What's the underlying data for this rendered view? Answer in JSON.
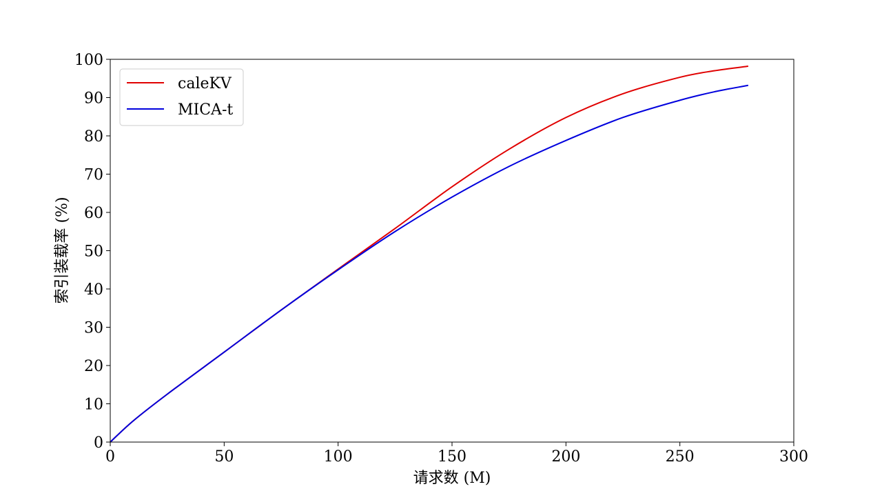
{
  "chart_data": {
    "type": "line",
    "title": "",
    "xlabel": "请求数 (M)",
    "ylabel": "索引装载率 (%)",
    "xlim": [
      0,
      300
    ],
    "ylim": [
      0,
      100
    ],
    "xticks": [
      0,
      50,
      100,
      150,
      200,
      250,
      300
    ],
    "yticks": [
      0,
      10,
      20,
      30,
      40,
      50,
      60,
      70,
      80,
      90,
      100
    ],
    "grid": false,
    "legend_position": "top-left",
    "series": [
      {
        "name": "caleKV",
        "color": "#e00000",
        "x": [
          0,
          10,
          25,
          50,
          75,
          100,
          125,
          150,
          175,
          200,
          225,
          250,
          265,
          280
        ],
        "y": [
          0,
          5.5,
          12.5,
          23.5,
          34.5,
          45.2,
          55.8,
          66.7,
          76.5,
          84.8,
          91.0,
          95.3,
          97.0,
          98.2
        ]
      },
      {
        "name": "MICA-t",
        "color": "#0000dd",
        "x": [
          0,
          10,
          25,
          50,
          75,
          100,
          125,
          150,
          175,
          200,
          225,
          250,
          265,
          280
        ],
        "y": [
          0,
          5.5,
          12.5,
          23.5,
          34.5,
          45.0,
          55.0,
          64.0,
          72.0,
          78.8,
          84.8,
          89.3,
          91.5,
          93.2
        ]
      }
    ]
  }
}
